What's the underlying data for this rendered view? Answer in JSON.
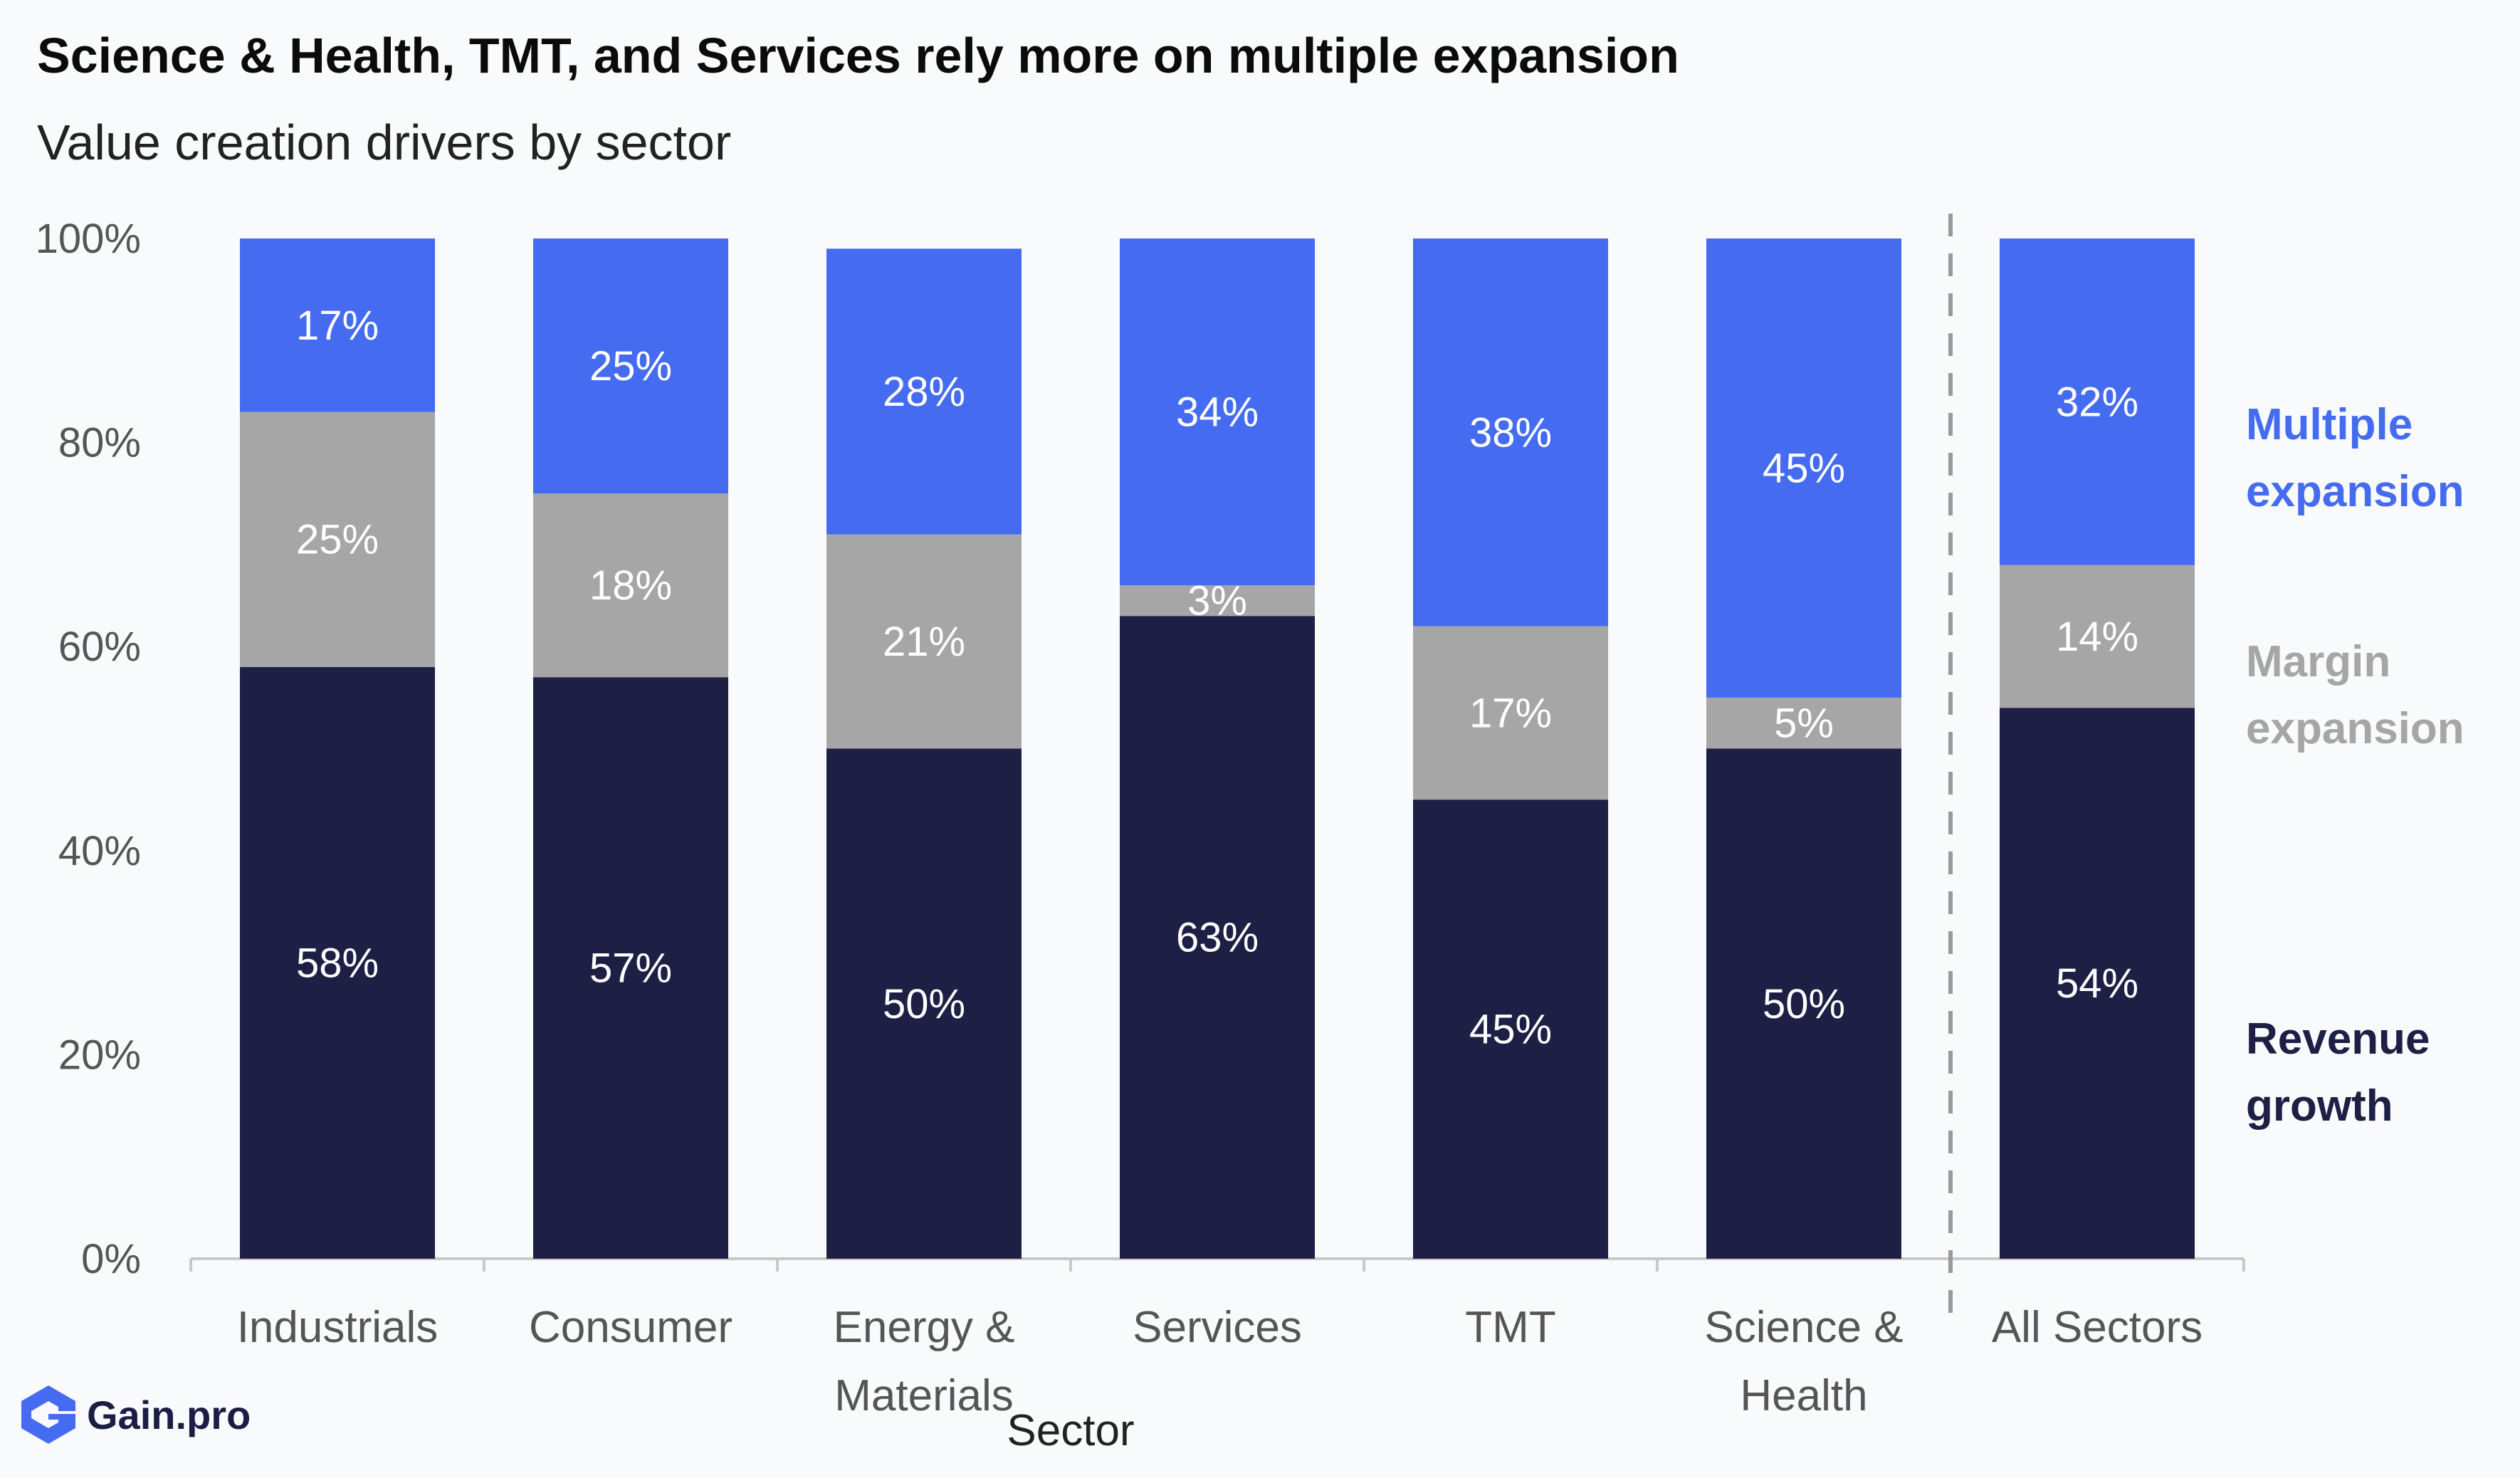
{
  "title": "Science & Health, TMT, and Services rely more on multiple expansion",
  "subtitle": "Value creation drivers by sector",
  "brand": {
    "name": "Gain.pro",
    "icon": "gain-pro-logo-icon"
  },
  "colors": {
    "revenue": "#1d1f45",
    "margin": "#a6a6a6",
    "multiple": "#456bf0",
    "divider": "#9a9a9a"
  },
  "chart_data": {
    "type": "bar",
    "stacked": true,
    "xlabel": "Sector",
    "ylabel": "",
    "ylim": [
      0,
      100
    ],
    "yticks": [
      "0%",
      "20%",
      "40%",
      "60%",
      "80%",
      "100%"
    ],
    "categories": [
      [
        "Industrials"
      ],
      [
        "Consumer"
      ],
      [
        "Energy &",
        "Materials"
      ],
      [
        "Services"
      ],
      [
        "TMT"
      ],
      [
        "Science &",
        "Health"
      ],
      [
        "All Sectors"
      ]
    ],
    "divider_before_index": 6,
    "series": [
      {
        "name": "Revenue growth",
        "legend_lines": [
          "Revenue",
          "growth"
        ],
        "color": "#1d1f45",
        "values": [
          58,
          57,
          50,
          63,
          45,
          50,
          54
        ]
      },
      {
        "name": "Margin expansion",
        "legend_lines": [
          "Margin",
          "expansion"
        ],
        "color": "#a6a6a6",
        "values": [
          25,
          18,
          21,
          3,
          17,
          5,
          14
        ]
      },
      {
        "name": "Multiple expansion",
        "legend_lines": [
          "Multiple",
          "expansion"
        ],
        "color": "#456bf0",
        "values": [
          17,
          25,
          28,
          34,
          38,
          45,
          32
        ]
      }
    ],
    "legend_position": "right",
    "grid": false
  }
}
